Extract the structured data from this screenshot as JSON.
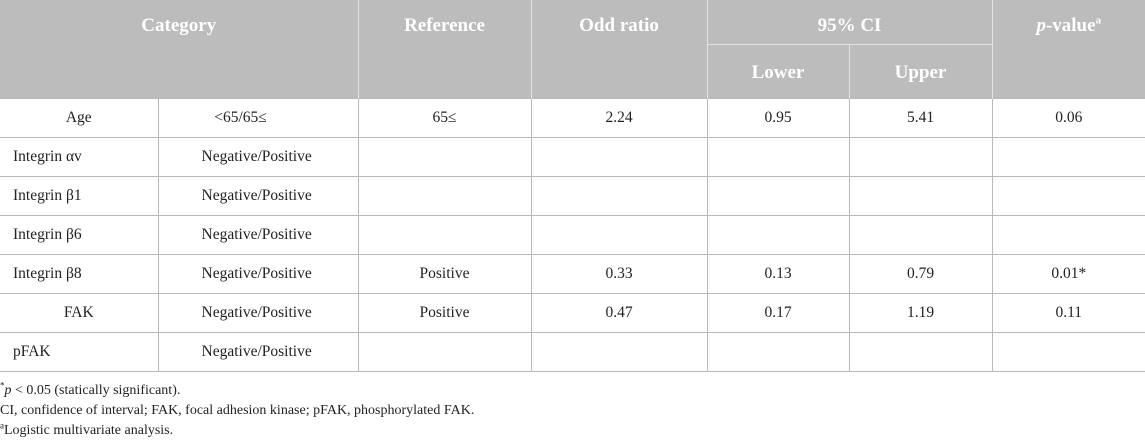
{
  "header": {
    "category": "Category",
    "reference": "Reference",
    "odd_ratio": "Odd ratio",
    "ci": "95% CI",
    "pvalue_italic": "p",
    "pvalue_rest": "-value",
    "pvalue_sup": "a",
    "lower": "Lower",
    "upper": "Upper"
  },
  "rows": [
    {
      "category": "Age",
      "sub": "<65/65≤",
      "reference": "65≤",
      "odd_ratio": "2.24",
      "lower": "0.95",
      "upper": "5.41",
      "pvalue": "0.06"
    },
    {
      "category": "Integrin αv",
      "sub": "Negative/Positive",
      "reference": "",
      "odd_ratio": "",
      "lower": "",
      "upper": "",
      "pvalue": ""
    },
    {
      "category": "Integrin β1",
      "sub": "Negative/Positive",
      "reference": "",
      "odd_ratio": "",
      "lower": "",
      "upper": "",
      "pvalue": ""
    },
    {
      "category": "Integrin β6",
      "sub": "Negative/Positive",
      "reference": "",
      "odd_ratio": "",
      "lower": "",
      "upper": "",
      "pvalue": ""
    },
    {
      "category": "Integrin β8",
      "sub": "Negative/Positive",
      "reference": "Positive",
      "odd_ratio": "0.33",
      "lower": "0.13",
      "upper": "0.79",
      "pvalue": "0.01*"
    },
    {
      "category": "FAK",
      "sub": "Negative/Positive",
      "reference": "Positive",
      "odd_ratio": "0.47",
      "lower": "0.17",
      "upper": "1.19",
      "pvalue": "0.11"
    },
    {
      "category": "pFAK",
      "sub": "Negative/Positive",
      "reference": "",
      "odd_ratio": "",
      "lower": "",
      "upper": "",
      "pvalue": ""
    }
  ],
  "notes": {
    "note1_star": "*",
    "note1_p": "p",
    "note1_rest": " < 0.05 (statically significant).",
    "note2": "CI, confidence of interval; FAK, focal adhesion kinase; pFAK, phosphorylated FAK.",
    "note3_sup": "a",
    "note3": "Logistic multivariate analysis."
  }
}
